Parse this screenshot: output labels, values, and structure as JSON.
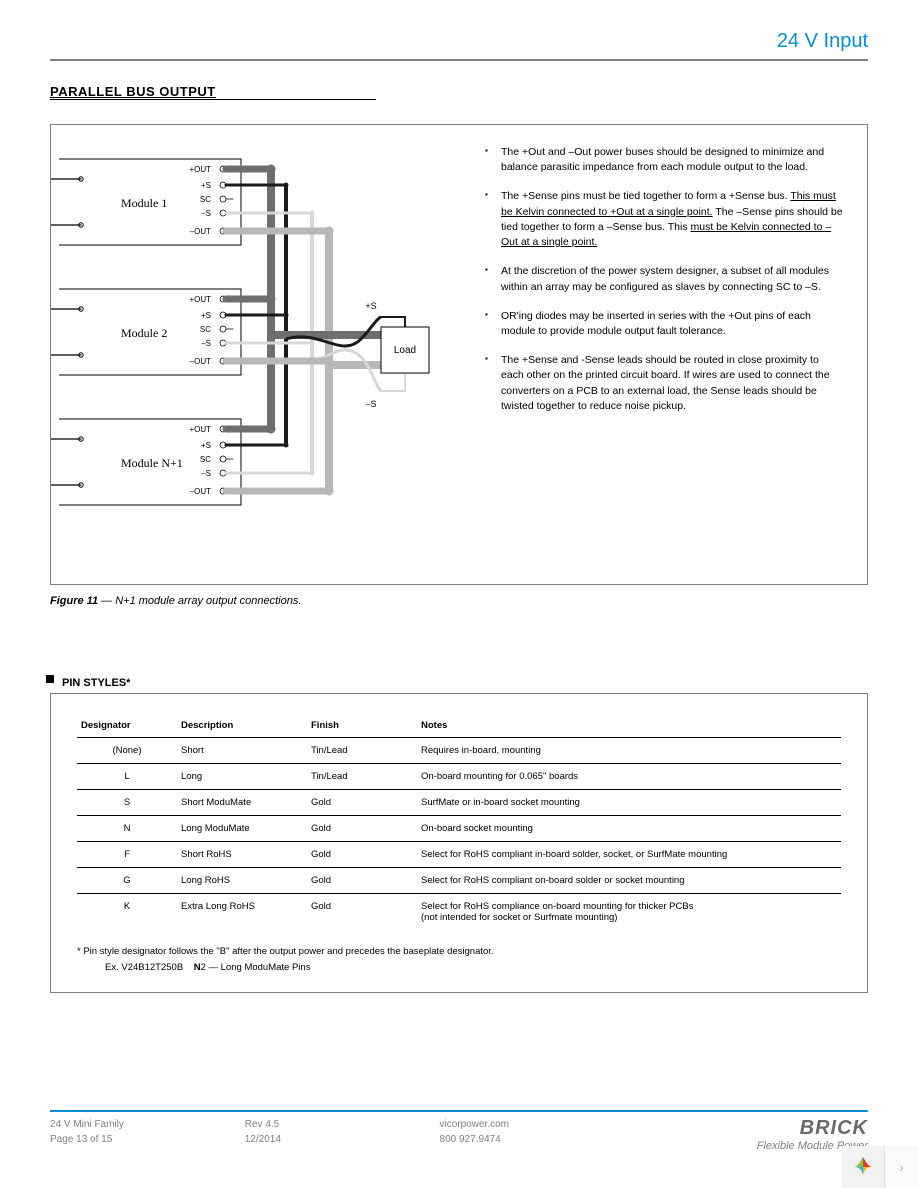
{
  "header": {
    "title": "24 V Input"
  },
  "section1": {
    "title": "PARALLEL BUS OUTPUT"
  },
  "diagram": {
    "modules": [
      "Module 1",
      "Module 2",
      "Module N+1"
    ],
    "pins": [
      "+OUT",
      "+S",
      "SC",
      "–S",
      "–OUT"
    ],
    "load_label": "Load",
    "sense_plus": "+S",
    "sense_minus": "–S",
    "colors": {
      "out_plus": "#6e6e6e",
      "out_minus": "#b8b8b8",
      "s_plus": "#1a1a1a",
      "s_minus": "#d8d8d8",
      "box_border": "#808080",
      "module_border": "#000000"
    }
  },
  "bullets": [
    "The +Out and –Out power buses should be designed to minimize and balance parasitic impedance from each module output to the load.",
    "The +Sense pins must be tied together to form a +Sense bus. <u>This must be Kelvin connected to +Out at a single point.</u> The –Sense pins should be tied together to form a –Sense bus. This <u>must be Kelvin connected to –Out at a single point.</u>",
    "At the discretion of the power system designer, a subset of all modules within an array may be configured as slaves by connecting SC to –S.",
    "OR'ing diodes may be inserted in series with the +Out pins of each module to provide module output fault tolerance.",
    "The +Sense and -Sense leads should  be routed in close proximity to each other on the printed circuit board. If wires are used to connect the converters on a PCB to an external load, the Sense leads should be twisted together to reduce noise pickup."
  ],
  "figure_caption": {
    "num": "Figure 11",
    "text": "N+1 module array output connections."
  },
  "section2": {
    "title": "PIN STYLES*"
  },
  "table": {
    "columns": [
      "Designator",
      "Description",
      "Finish",
      "Notes"
    ],
    "rows": [
      [
        "(None)",
        "Short",
        "Tin/Lead",
        "Requires in-board, mounting"
      ],
      [
        "L",
        "Long",
        "Tin/Lead",
        "On-board mounting for 0.065\" boards"
      ],
      [
        "S",
        "Short ModuMate",
        "Gold",
        "SurfMate or in-board socket mounting"
      ],
      [
        "N",
        "Long ModuMate",
        "Gold",
        "On-board socket mounting"
      ],
      [
        "F",
        "Short RoHS",
        "Gold",
        "Select for RoHS compliant in-board solder, socket, or SurfMate mounting"
      ],
      [
        "G",
        "Long RoHS",
        "Gold",
        "Select for RoHS compliant on-board solder or socket mounting"
      ],
      [
        "K",
        "Extra Long RoHS",
        "Gold",
        "Select for RoHS compliance on-board mounting for thicker PCBs\n(not intended for socket or Surfmate mounting)"
      ]
    ]
  },
  "footnote": {
    "line1": "* Pin style designator follows the \"B\" after the output power and precedes the baseplate designator.",
    "line2_prefix": "Ex. V24B12T250B",
    "line2_bold": "N",
    "line2_rest": "2 — Long ModuMate Pins"
  },
  "footer": {
    "left1": "24 V Mini Family",
    "left2": "Page 13 of 15",
    "mid1": "Rev 4.5",
    "mid2": "12/2014",
    "right1": "vicorpower.com",
    "right2": "800 927.9474",
    "brand_name": "BRICK",
    "brand_tag": "Flexible Module Power"
  }
}
